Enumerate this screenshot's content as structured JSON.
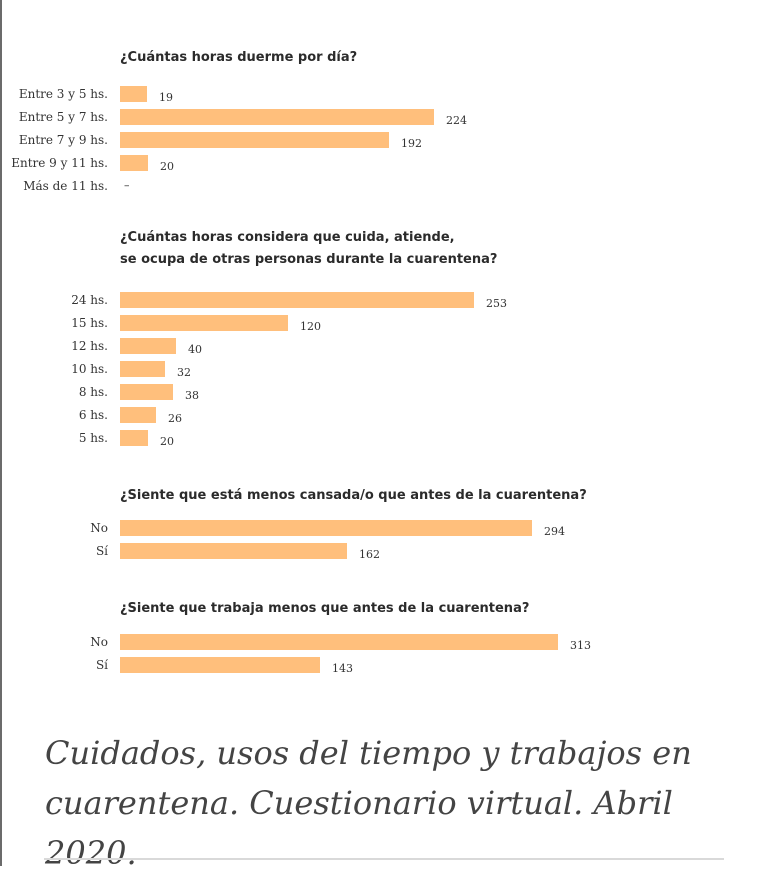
{
  "chart_data": [
    {
      "type": "bar",
      "orientation": "horizontal",
      "title_lines": [
        "¿Cuántas horas duerme por día?"
      ],
      "categories": [
        "Entre 3 y 5 hs.",
        "Entre 5 y 7 hs.",
        "Entre 7 y 9 hs.",
        "Entre 9 y 11 hs.",
        "Más de 11 hs."
      ],
      "values": [
        19,
        224,
        192,
        20,
        null
      ],
      "value_labels": [
        "19",
        "224",
        "192",
        "20",
        "–"
      ],
      "grid": false
    },
    {
      "type": "bar",
      "orientation": "horizontal",
      "title_lines": [
        "¿Cuántas horas considera que cuida, atiende,",
        "se ocupa de otras personas durante la cuarentena?"
      ],
      "categories": [
        "24 hs.",
        "15 hs.",
        "12 hs.",
        "10 hs.",
        "8 hs.",
        "6 hs.",
        "5 hs."
      ],
      "values": [
        253,
        120,
        40,
        32,
        38,
        26,
        20
      ],
      "value_labels": [
        "253",
        "120",
        "40",
        "32",
        "38",
        "26",
        "20"
      ],
      "grid": false
    },
    {
      "type": "bar",
      "orientation": "horizontal",
      "title_lines": [
        "¿Siente que está menos cansada/o que antes de la cuarentena?"
      ],
      "categories": [
        "No",
        "Sí"
      ],
      "values": [
        294,
        162
      ],
      "value_labels": [
        "294",
        "162"
      ],
      "grid": false
    },
    {
      "type": "bar",
      "orientation": "horizontal",
      "title_lines": [
        "¿Siente que trabaja menos que antes de la cuarentena?"
      ],
      "categories": [
        "No",
        "Sí"
      ],
      "values": [
        313,
        143
      ],
      "value_labels": [
        "313",
        "143"
      ],
      "grid": false
    }
  ],
  "caption_lines": [
    "Cuidados, usos del tiempo y trabajos en",
    "cuarentena. Cuestionario virtual. Abril 2020."
  ],
  "colors": {
    "bar": "#ffbf7c",
    "text": "#333333"
  }
}
